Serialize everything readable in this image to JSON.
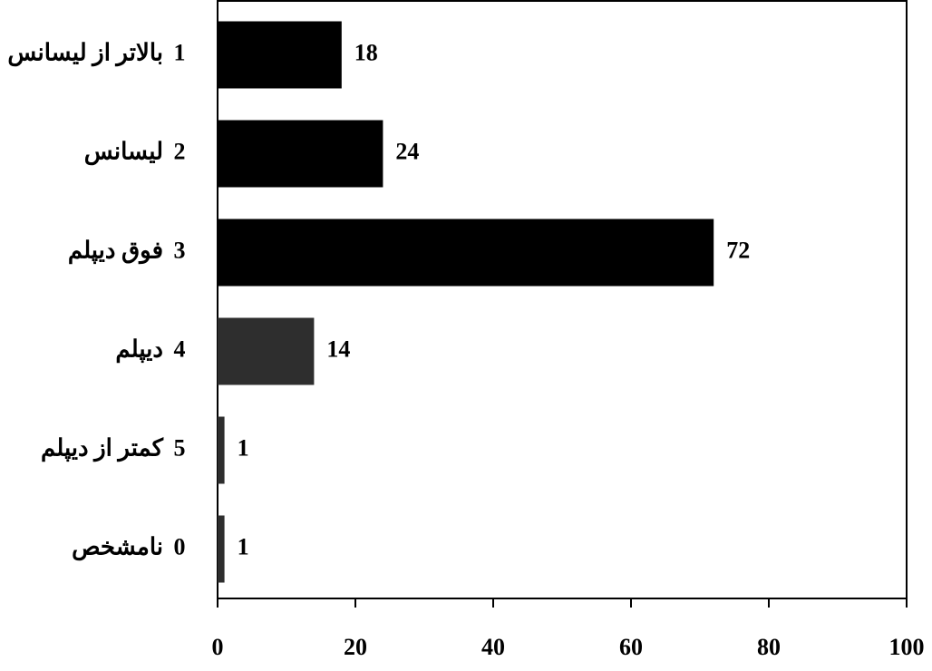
{
  "chart_data": {
    "type": "barh",
    "categories": [
      "بالاتر از لیسانس",
      "لیسانس",
      "فوق دیپلم",
      "دیپلم",
      "کمتر از دیپلم",
      "نامشخص"
    ],
    "category_codes": [
      1,
      2,
      3,
      4,
      5,
      0
    ],
    "values": [
      18,
      24,
      72,
      14,
      1,
      1
    ],
    "colors": [
      "#000000",
      "#000000",
      "#000000",
      "#2e2e2e",
      "#2e2e2e",
      "#2e2e2e"
    ],
    "xlim": [
      0,
      100
    ],
    "xticks": [
      0,
      20,
      40,
      60,
      80,
      100
    ],
    "grid": false
  }
}
